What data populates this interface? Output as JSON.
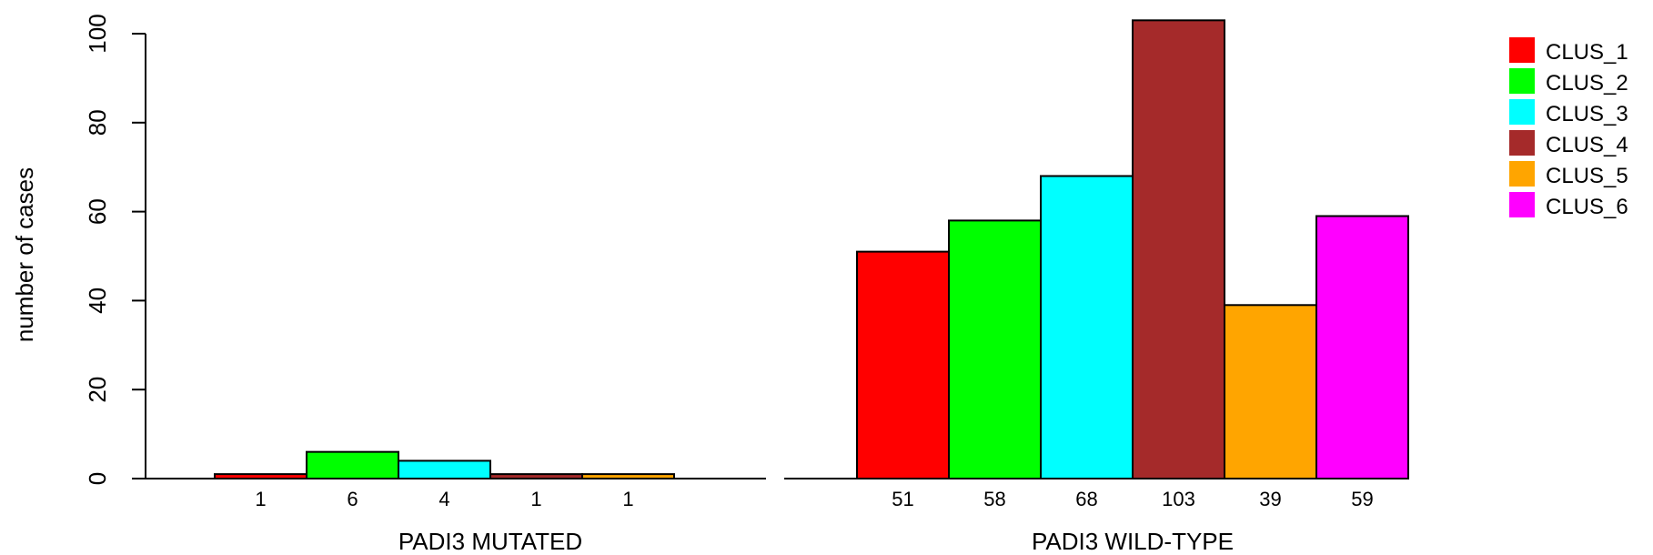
{
  "chart_data": {
    "type": "bar",
    "ylabel": "number of cases",
    "ylim": [
      0,
      100
    ],
    "yticks": [
      0,
      20,
      40,
      60,
      80,
      100
    ],
    "groups": [
      {
        "name": "PADI3 MUTATED",
        "values": [
          1,
          6,
          4,
          1,
          1,
          0
        ],
        "labels": [
          "1",
          "6",
          "4",
          "1",
          "1",
          ""
        ]
      },
      {
        "name": "PADI3 WILD-TYPE",
        "values": [
          51,
          58,
          68,
          103,
          39,
          59
        ],
        "labels": [
          "51",
          "58",
          "68",
          "103",
          "39",
          "59"
        ]
      }
    ],
    "series": [
      {
        "name": "CLUS_1",
        "color": "#ff0000"
      },
      {
        "name": "CLUS_2",
        "color": "#00ff00"
      },
      {
        "name": "CLUS_3",
        "color": "#00ffff"
      },
      {
        "name": "CLUS_4",
        "color": "#a52a2a"
      },
      {
        "name": "CLUS_5",
        "color": "#ffa500"
      },
      {
        "name": "CLUS_6",
        "color": "#ff00ff"
      }
    ],
    "legend_position": "top-right",
    "grid": false
  }
}
